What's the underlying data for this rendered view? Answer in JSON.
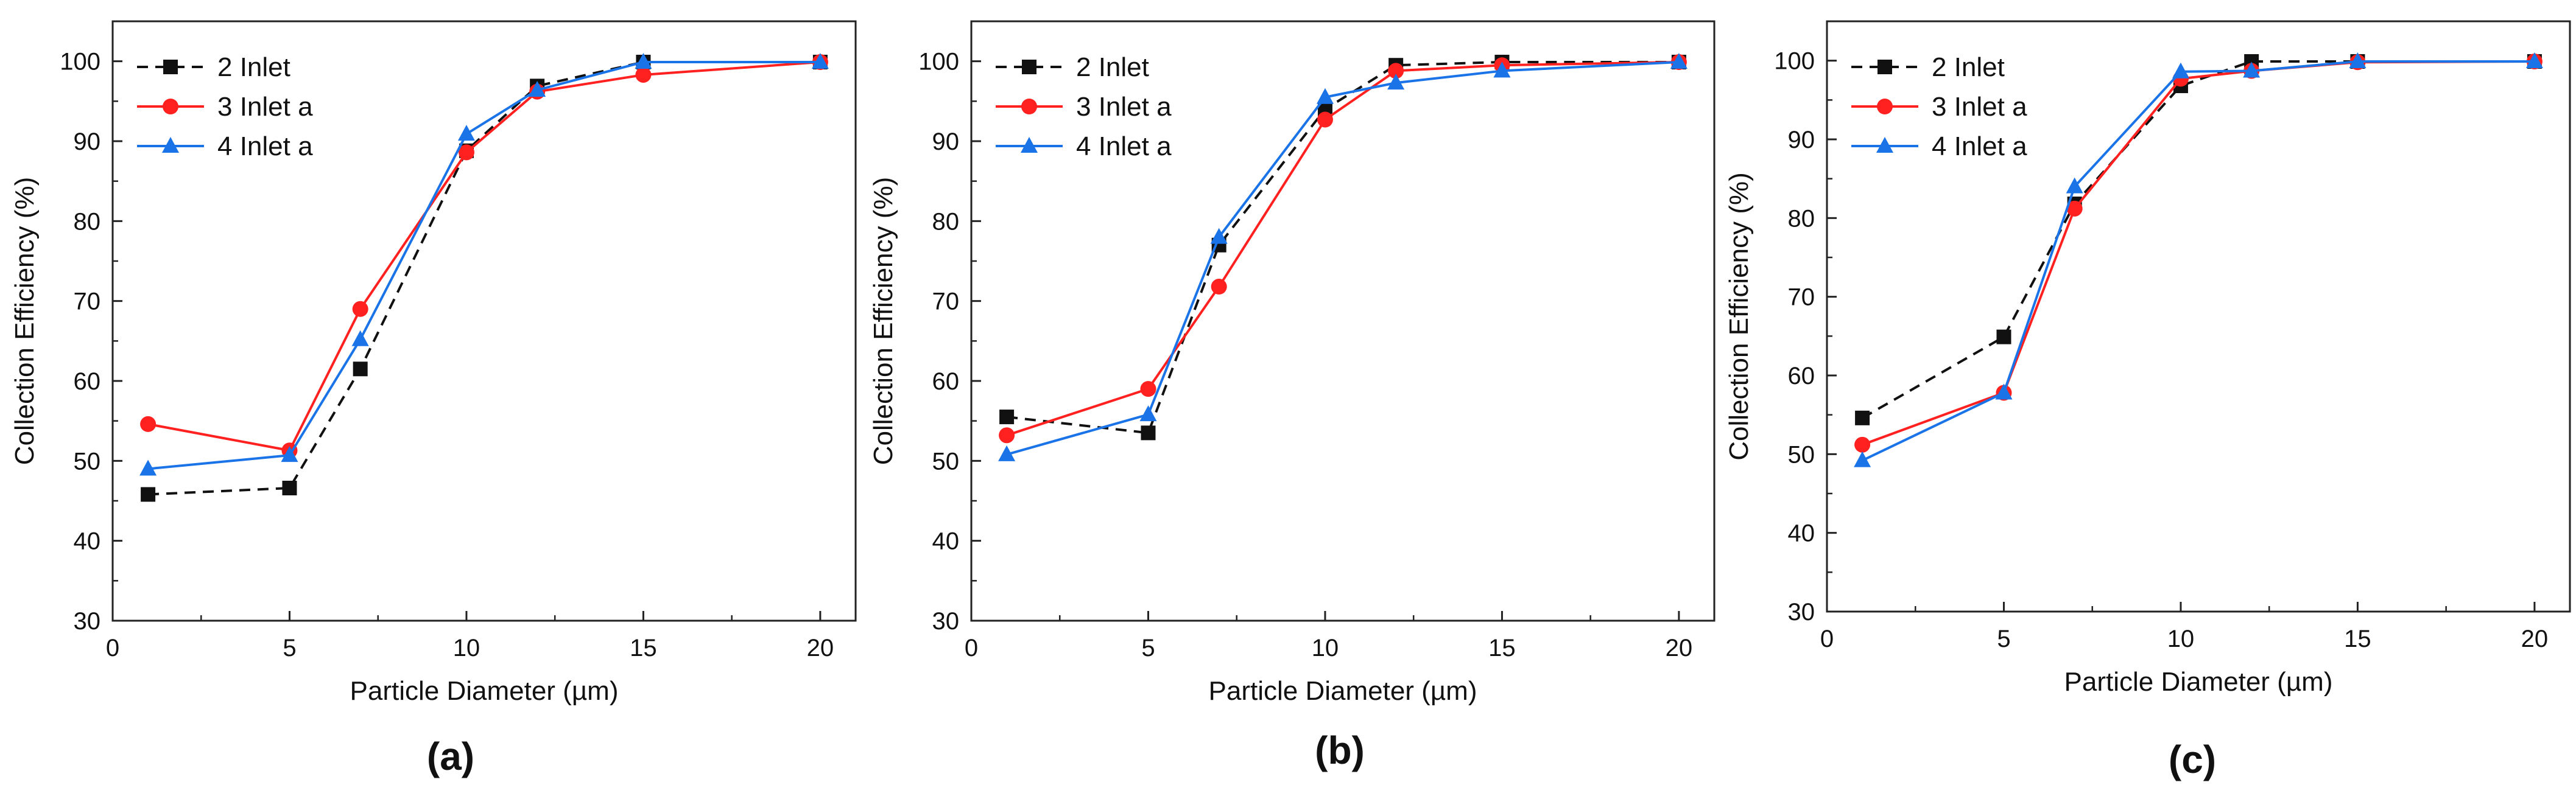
{
  "figure": {
    "panel_labels": [
      "(a)",
      "(b)",
      "(c)"
    ]
  },
  "chart_data": [
    {
      "type": "line",
      "title": "",
      "panel_label": "(a)",
      "xlabel": "Particle Diameter (µm)",
      "ylabel": "Collection Efficiency (%)",
      "xlim": [
        0,
        21
      ],
      "ylim": [
        30,
        105
      ],
      "x_ticks": [
        0,
        5,
        10,
        15,
        20
      ],
      "y_ticks": [
        30,
        40,
        50,
        60,
        70,
        80,
        90,
        100
      ],
      "grid": false,
      "legend_position": "top-left",
      "x": [
        1,
        5,
        7,
        10,
        12,
        15,
        20
      ],
      "series": [
        {
          "name": "2 Inlet",
          "color": "#111111",
          "marker": "square",
          "dash": "dashed",
          "values": [
            45.8,
            46.6,
            61.5,
            88.8,
            96.9,
            99.9,
            99.9
          ]
        },
        {
          "name": "3 Inlet a",
          "color": "#ff2020",
          "marker": "circle",
          "dash": "solid",
          "values": [
            54.6,
            51.3,
            69.0,
            88.6,
            96.2,
            98.3,
            99.9
          ]
        },
        {
          "name": "4 Inlet a",
          "color": "#1a74e8",
          "marker": "triangle",
          "dash": "solid",
          "values": [
            49.0,
            50.7,
            65.2,
            90.9,
            96.4,
            99.9,
            99.9
          ]
        }
      ]
    },
    {
      "type": "line",
      "title": "",
      "panel_label": "(b)",
      "xlabel": "Particle Diameter (µm)",
      "ylabel": "Collection Efficiency (%)",
      "xlim": [
        0,
        21
      ],
      "ylim": [
        30,
        105
      ],
      "x_ticks": [
        0,
        5,
        10,
        15,
        20
      ],
      "y_ticks": [
        30,
        40,
        50,
        60,
        70,
        80,
        90,
        100
      ],
      "grid": false,
      "legend_position": "top-left",
      "x": [
        1,
        5,
        7,
        10,
        12,
        15,
        20
      ],
      "series": [
        {
          "name": "2 Inlet",
          "color": "#111111",
          "marker": "square",
          "dash": "dashed",
          "values": [
            55.5,
            53.5,
            77.0,
            94.0,
            99.5,
            99.9,
            99.9
          ]
        },
        {
          "name": "3 Inlet a",
          "color": "#ff2020",
          "marker": "circle",
          "dash": "solid",
          "values": [
            53.2,
            59.0,
            71.8,
            92.7,
            98.8,
            99.5,
            99.9
          ]
        },
        {
          "name": "4 Inlet a",
          "color": "#1a74e8",
          "marker": "triangle",
          "dash": "solid",
          "values": [
            50.8,
            55.8,
            78.0,
            95.5,
            97.3,
            98.8,
            99.9
          ]
        }
      ]
    },
    {
      "type": "line",
      "title": "",
      "panel_label": "(c)",
      "xlabel": "Particle Diameter (µm)",
      "ylabel": "Collection Efficiency (%)",
      "xlim": [
        0,
        21
      ],
      "ylim": [
        30,
        105
      ],
      "x_ticks": [
        0,
        5,
        10,
        15,
        20
      ],
      "y_ticks": [
        30,
        40,
        50,
        60,
        70,
        80,
        90,
        100
      ],
      "grid": false,
      "legend_position": "top-left",
      "x": [
        1,
        5,
        7,
        10,
        12,
        15,
        20
      ],
      "series": [
        {
          "name": "2 Inlet",
          "color": "#111111",
          "marker": "square",
          "dash": "dashed",
          "values": [
            54.6,
            64.9,
            81.8,
            96.8,
            99.9,
            99.9,
            99.9
          ]
        },
        {
          "name": "3 Inlet a",
          "color": "#ff2020",
          "marker": "circle",
          "dash": "solid",
          "values": [
            51.2,
            57.8,
            81.2,
            97.7,
            98.7,
            99.8,
            99.9
          ]
        },
        {
          "name": "4 Inlet a",
          "color": "#1a74e8",
          "marker": "triangle",
          "dash": "solid",
          "values": [
            49.2,
            57.8,
            84.0,
            98.6,
            98.7,
            99.9,
            99.9
          ]
        }
      ]
    }
  ]
}
